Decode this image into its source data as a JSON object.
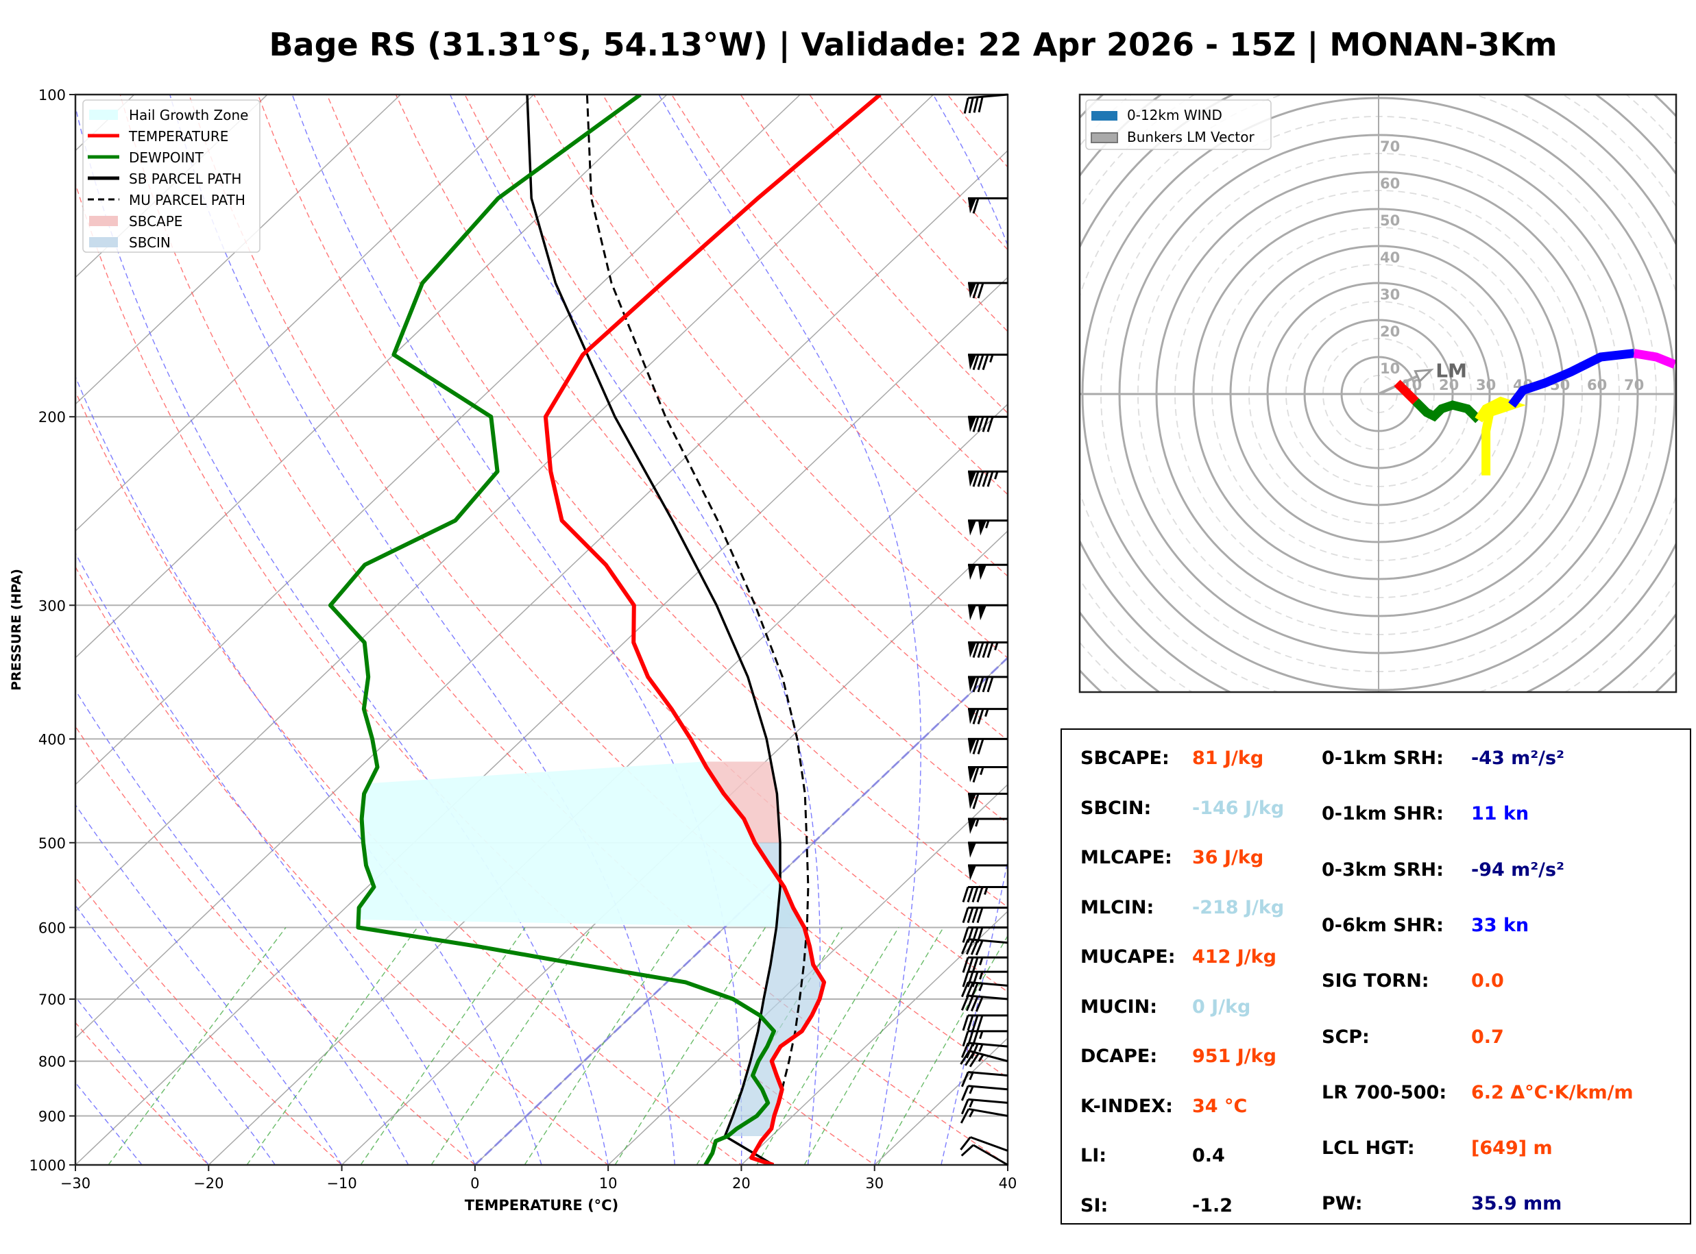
{
  "title": "Bage RS (31.31°S, 54.13°W) | Validade: 22 Apr 2026 - 15Z | MONAN-3Km",
  "chart_data": [
    {
      "type": "skew-t",
      "title": "",
      "xlabel": "TEMPERATURE (°C)",
      "ylabel": "PRESSURE (HPA)",
      "xlim": [
        -30,
        40
      ],
      "ylim": [
        1000,
        100
      ],
      "x_ticks": [
        "−30",
        "−20",
        "−10",
        "0",
        "10",
        "20",
        "30",
        "40"
      ],
      "x_tick_values": [
        -30,
        -20,
        -10,
        0,
        10,
        20,
        30,
        40
      ],
      "y_ticks": [
        "100",
        "200",
        "300",
        "400",
        "500",
        "600",
        "700",
        "800",
        "900",
        "1000"
      ],
      "y_tick_values": [
        100,
        200,
        300,
        400,
        500,
        600,
        700,
        800,
        900,
        1000
      ],
      "legend": {
        "placement": "top-left",
        "entries": [
          {
            "label": "Hail Growth Zone",
            "color": "#e0ffff",
            "style": "patch"
          },
          {
            "label": "TEMPERATURE",
            "color": "#ff0000",
            "style": "line"
          },
          {
            "label": "DEWPOINT",
            "color": "#008000",
            "style": "line"
          },
          {
            "label": "SB PARCEL PATH",
            "color": "#000000",
            "style": "line"
          },
          {
            "label": "MU PARCEL PATH",
            "color": "#000000",
            "style": "dashed"
          },
          {
            "label": "SBCAPE",
            "color": "#f4c6c6",
            "style": "patch"
          },
          {
            "label": "SBCIN",
            "color": "#c8dcec",
            "style": "patch"
          }
        ]
      },
      "temperature": {
        "pressure": [
          1000,
          985,
          950,
          925,
          900,
          875,
          850,
          825,
          800,
          775,
          750,
          725,
          700,
          675,
          650,
          625,
          600,
          575,
          550,
          525,
          500,
          475,
          450,
          425,
          400,
          375,
          350,
          325,
          300,
          275,
          250,
          225,
          200,
          175,
          150,
          125,
          100
        ],
        "values": [
          22.4,
          20.2,
          19.6,
          19.4,
          18.6,
          17.9,
          17.1,
          15.6,
          14.1,
          13.6,
          14.0,
          13.5,
          12.8,
          11.8,
          9.6,
          7.9,
          6.0,
          3.6,
          1.3,
          -1.5,
          -4.4,
          -7.1,
          -10.6,
          -14.0,
          -17.4,
          -21.2,
          -25.5,
          -29.3,
          -32.2,
          -37.5,
          -44.3,
          -49.0,
          -53.7,
          -55.8,
          -55.5,
          -55.0,
          -54.0
        ]
      },
      "dewpoint": {
        "pressure": [
          1000,
          975,
          950,
          940,
          925,
          900,
          875,
          850,
          825,
          800,
          775,
          750,
          725,
          700,
          675,
          650,
          625,
          600,
          575,
          550,
          525,
          500,
          475,
          450,
          425,
          400,
          375,
          350,
          325,
          300,
          275,
          250,
          225,
          200,
          175,
          150,
          125,
          100
        ],
        "values": [
          17.3,
          16.9,
          16.2,
          16.7,
          16.8,
          17.3,
          17.1,
          15.6,
          13.8,
          13.1,
          12.6,
          11.9,
          9.6,
          6.3,
          1.4,
          -7.8,
          -17.0,
          -27.5,
          -29.0,
          -29.5,
          -31.8,
          -33.8,
          -35.8,
          -37.6,
          -38.7,
          -41.3,
          -44.3,
          -46.5,
          -49.5,
          -55.0,
          -55.6,
          -52.3,
          -53.0,
          -57.8,
          -70.0,
          -73.5,
          -74.5,
          -72.0
        ]
      },
      "sb_parcel": {
        "pressure": [
          1000,
          940,
          900,
          850,
          800,
          750,
          700,
          650,
          600,
          550,
          500,
          450,
          400,
          350,
          300,
          250,
          200,
          150,
          125,
          100
        ],
        "values": [
          22.4,
          16.5,
          15.5,
          14.1,
          12.5,
          10.7,
          8.6,
          6.4,
          3.9,
          1.0,
          -2.5,
          -6.6,
          -11.7,
          -18.0,
          -26.0,
          -36.0,
          -48.5,
          -63.5,
          -72.0,
          -80.5
        ]
      },
      "mu_parcel": {
        "pressure": [
          850,
          800,
          750,
          700,
          650,
          600,
          550,
          500,
          450,
          400,
          350,
          300,
          250,
          200,
          150,
          125,
          100
        ],
        "values": [
          17.1,
          15.4,
          13.5,
          11.3,
          8.9,
          6.2,
          3.1,
          -0.5,
          -4.5,
          -9.4,
          -15.4,
          -23.1,
          -32.6,
          -44.7,
          -59.3,
          -67.5,
          -76.0
        ]
      },
      "hail_growth_zone": {
        "pressure_top": 420,
        "pressure_bottom": 600,
        "t_top": -30,
        "t_bottom": -10
      },
      "wind_barbs": {
        "pressure": [
          1000,
          970,
          900,
          875,
          850,
          825,
          800,
          775,
          750,
          725,
          700,
          680,
          660,
          640,
          620,
          600,
          575,
          550,
          525,
          500,
          475,
          450,
          425,
          400,
          375,
          350,
          325,
          300,
          275,
          250,
          225,
          200,
          175,
          150,
          125,
          100
        ],
        "speed_kt": [
          10,
          10,
          15,
          15,
          15,
          15,
          35,
          35,
          35,
          40,
          40,
          35,
          35,
          35,
          40,
          40,
          40,
          45,
          50,
          50,
          55,
          60,
          65,
          70,
          75,
          90,
          95,
          100,
          100,
          105,
          95,
          90,
          85,
          70,
          60,
          40
        ],
        "direction_deg": [
          300,
          290,
          280,
          275,
          275,
          275,
          285,
          275,
          270,
          270,
          275,
          275,
          270,
          270,
          275,
          270,
          270,
          270,
          270,
          270,
          270,
          270,
          270,
          270,
          270,
          270,
          270,
          270,
          270,
          270,
          270,
          270,
          270,
          270,
          270,
          265
        ]
      }
    },
    {
      "type": "hodograph",
      "ring_labels": [
        "10",
        "20",
        "30",
        "40",
        "50",
        "60",
        "70"
      ],
      "ring_values": [
        10,
        20,
        30,
        40,
        50,
        60,
        70
      ],
      "x_ring_labels": [
        "10",
        "20",
        "30",
        "40",
        "50",
        "60",
        "70"
      ],
      "max_ring": 80,
      "legend": {
        "placement": "top-left",
        "entries": [
          {
            "label": "0-12km WIND",
            "color": "#1f77b4"
          },
          {
            "label": "Bunkers LM Vector",
            "color": "#aaaaaa"
          }
        ]
      },
      "lm_vector": {
        "label": "LM",
        "u": 24,
        "v": 11
      },
      "segments": [
        {
          "name": "0-1km",
          "color": "#ff0000",
          "points": [
            [
              5,
              3
            ],
            [
              7,
              1
            ],
            [
              9,
              -1
            ],
            [
              10,
              -2
            ]
          ]
        },
        {
          "name": "1-3km",
          "color": "#008000",
          "points": [
            [
              10,
              -2
            ],
            [
              13,
              -5
            ],
            [
              15,
              -6
            ],
            [
              17,
              -4
            ],
            [
              20,
              -3
            ],
            [
              24,
              -4
            ],
            [
              27,
              -7
            ]
          ]
        },
        {
          "name": "3-6km",
          "color": "#ffff00",
          "points": [
            [
              27,
              -7
            ],
            [
              29,
              -4
            ],
            [
              33,
              -2
            ],
            [
              36,
              -3
            ],
            [
              30,
              -5
            ],
            [
              29,
              -10
            ],
            [
              29,
              -16
            ],
            [
              29,
              -22
            ]
          ]
        },
        {
          "name": "6-9km",
          "color": "#0000ff",
          "points": [
            [
              36,
              -3
            ],
            [
              39,
              1
            ],
            [
              45,
              3
            ],
            [
              52,
              6
            ],
            [
              60,
              10
            ],
            [
              69,
              11
            ]
          ]
        },
        {
          "name": "9-12km",
          "color": "#ff00ff",
          "points": [
            [
              69,
              11
            ],
            [
              75,
              10
            ],
            [
              80,
              8
            ]
          ]
        }
      ]
    }
  ],
  "stats": {
    "left": [
      {
        "label": "SBCAPE:",
        "value": "81 J/kg",
        "color": "#ff4500"
      },
      {
        "label": "SBCIN:",
        "value": "-146 J/kg",
        "color": "#add8e6"
      },
      {
        "label": "MLCAPE:",
        "value": "36 J/kg",
        "color": "#ff4500"
      },
      {
        "label": "MLCIN:",
        "value": "-218 J/kg",
        "color": "#add8e6"
      },
      {
        "label": "MUCAPE:",
        "value": "412 J/kg",
        "color": "#ff4500"
      },
      {
        "label": "MUCIN:",
        "value": "0 J/kg",
        "color": "#add8e6"
      },
      {
        "label": "DCAPE:",
        "value": "951 J/kg",
        "color": "#ff4500"
      },
      {
        "label": "K-INDEX:",
        "value": "34 °C",
        "color": "#ff4500"
      },
      {
        "label": "LI:",
        "value": "0.4",
        "color": "#000000"
      },
      {
        "label": "SI:",
        "value": "-1.2",
        "color": "#000000"
      }
    ],
    "right": [
      {
        "label": "0-1km SRH:",
        "value": "-43 m²/s²",
        "color": "#000080"
      },
      {
        "label": "0-1km SHR:",
        "value": "11 kn",
        "color": "#0000ff"
      },
      {
        "label": "0-3km SRH:",
        "value": "-94 m²/s²",
        "color": "#000080"
      },
      {
        "label": "0-6km SHR:",
        "value": "33 kn",
        "color": "#0000ff"
      },
      {
        "label": "SIG TORN:",
        "value": "0.0",
        "color": "#ff4500"
      },
      {
        "label": "SCP:",
        "value": "0.7",
        "color": "#ff4500"
      },
      {
        "label": "LR 700-500:",
        "value": "6.2 Δ°C·K/km/m",
        "color": "#ff4500"
      },
      {
        "label": "LCL HGT:",
        "value": "[649] m",
        "color": "#ff4500"
      },
      {
        "label": "PW:",
        "value": "35.9 mm",
        "color": "#000080"
      }
    ]
  }
}
